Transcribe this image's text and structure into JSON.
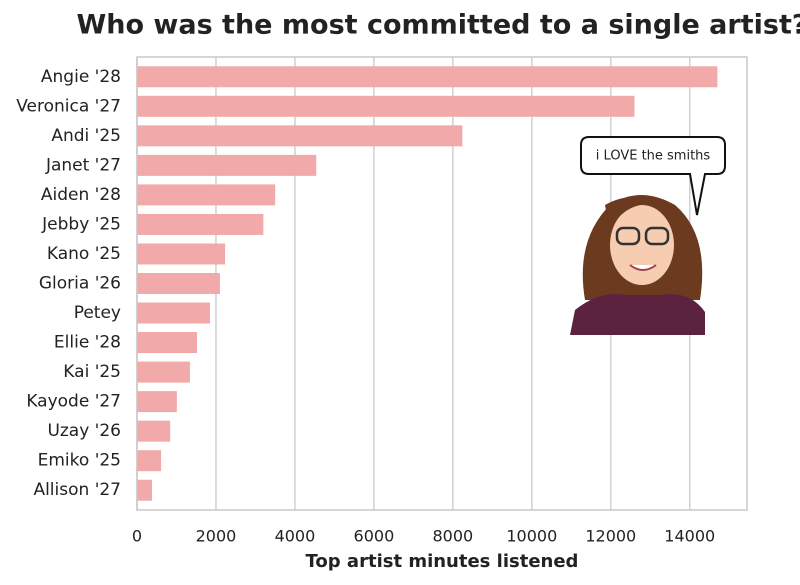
{
  "chart_data": {
    "type": "bar",
    "orientation": "horizontal",
    "title": "Who was the most committed to a single artist?",
    "xlabel": "Top artist minutes listened",
    "annotation": "i LOVE the smiths",
    "categories": [
      "Angie '28",
      "Veronica '27",
      "Andi '25",
      "Janet '27",
      "Aiden '28",
      "Jebby '25",
      "Kano '25",
      "Gloria '26",
      "Petey",
      "Ellie '28",
      "Kai '25",
      "Kayode '27",
      "Uzay '26",
      "Emiko '25",
      "Allison '27"
    ],
    "values": [
      14700,
      12600,
      8240,
      4540,
      3500,
      3200,
      2230,
      2100,
      1850,
      1520,
      1340,
      1010,
      840,
      610,
      380
    ],
    "color": "#f2a9a9",
    "xlim": [
      0,
      15450
    ],
    "xticks": [
      0,
      2000,
      4000,
      6000,
      8000,
      10000,
      12000,
      14000
    ],
    "grid": true
  }
}
